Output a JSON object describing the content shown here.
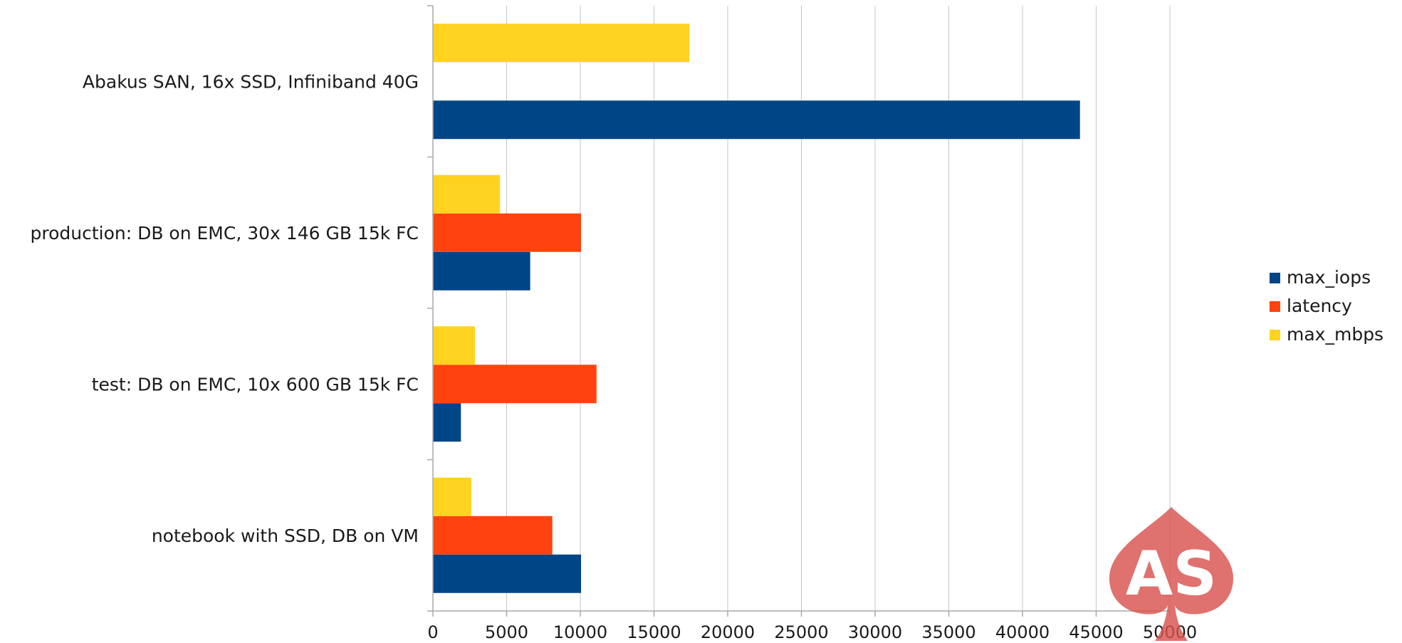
{
  "chart_data": {
    "type": "bar",
    "orientation": "horizontal",
    "title": "",
    "xlabel": "",
    "ylabel": "",
    "categories": [
      "Abakus SAN, 16x SSD, Infiniband 40G",
      "production: DB on EMC, 30x 146 GB 15k FC",
      "test: DB on EMC, 10x 600 GB 15k FC",
      "notebook with SSD, DB on VM"
    ],
    "series": [
      {
        "name": "max_iops",
        "color": "#004586",
        "values": [
          43900,
          6600,
          1900,
          10050
        ]
      },
      {
        "name": "latency",
        "color": "#ff420e",
        "values": [
          0,
          10050,
          11100,
          8100
        ]
      },
      {
        "name": "max_mbps",
        "color": "#ffd320",
        "values": [
          17400,
          4550,
          2850,
          2600
        ]
      }
    ],
    "xlim": [
      0,
      50000
    ],
    "xticks": [
      "0",
      "5000",
      "10000",
      "15000",
      "20000",
      "25000",
      "30000",
      "35000",
      "40000",
      "45000",
      "50000"
    ],
    "grid": true,
    "legend_position": "right"
  },
  "watermark": {
    "text": "AS",
    "icon": "spade-logo-icon",
    "color": "#d9534f"
  }
}
